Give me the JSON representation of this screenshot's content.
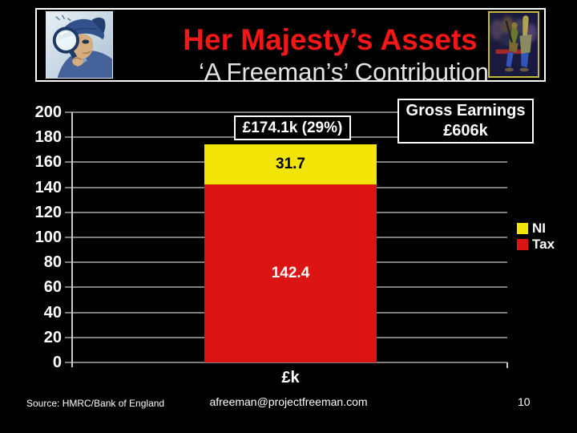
{
  "header": {
    "title": "Her Majesty’s Assets",
    "subtitle": "‘A Freeman’s’ Contribution",
    "left_image": "detective-with-magnifying-glass",
    "right_image": "protest-crowd-artwork"
  },
  "chart_data": {
    "type": "bar",
    "stacked": true,
    "categories": [
      "£k"
    ],
    "series": [
      {
        "name": "Tax",
        "color": "#DB1414",
        "values": [
          142.4
        ],
        "label_color": "#FFFFFF"
      },
      {
        "name": "NI",
        "color": "#F2E407",
        "values": [
          31.7
        ],
        "label_color": "#000000"
      }
    ],
    "legend": [
      {
        "label": "NI",
        "color": "#F2E407"
      },
      {
        "label": "Tax",
        "color": "#DB1414"
      }
    ],
    "ylim": [
      0,
      200
    ],
    "yticks": [
      0,
      20,
      40,
      60,
      80,
      100,
      120,
      140,
      160,
      180,
      200
    ],
    "grid": true,
    "legend_position": "right",
    "total_label": "£174.1k (29%)",
    "annotation_line1": "Gross Earnings",
    "annotation_line2": "£606k"
  },
  "footer": {
    "source": "Source: HMRC/Bank of England",
    "email": "afreeman@projectfreeman.com",
    "page_number": "10"
  }
}
